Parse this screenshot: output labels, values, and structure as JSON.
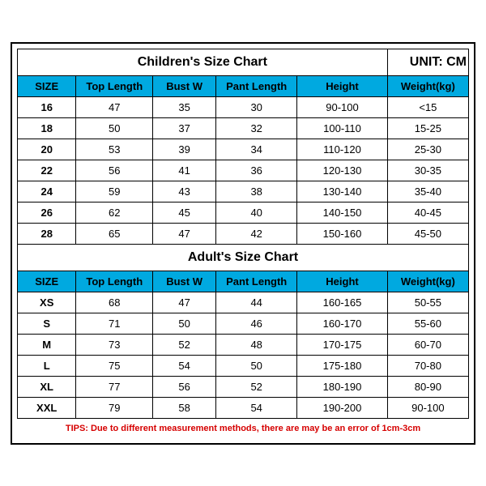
{
  "unit_label": "UNIT: CM",
  "tips": "TIPS: Due to different measurement methods, there are may be an error of 1cm-3cm",
  "columns": [
    "SIZE",
    "Top Length",
    "Bust W",
    "Pant Length",
    "Height",
    "Weight(kg)"
  ],
  "col_widths": [
    "13%",
    "17%",
    "14%",
    "18%",
    "20%",
    "18%"
  ],
  "header_bg": "#00a9e0",
  "border_color": "#000000",
  "tips_color": "#d60000",
  "children": {
    "title": "Children's Size Chart",
    "rows": [
      [
        "16",
        "47",
        "35",
        "30",
        "90-100",
        "<15"
      ],
      [
        "18",
        "50",
        "37",
        "32",
        "100-110",
        "15-25"
      ],
      [
        "20",
        "53",
        "39",
        "34",
        "110-120",
        "25-30"
      ],
      [
        "22",
        "56",
        "41",
        "36",
        "120-130",
        "30-35"
      ],
      [
        "24",
        "59",
        "43",
        "38",
        "130-140",
        "35-40"
      ],
      [
        "26",
        "62",
        "45",
        "40",
        "140-150",
        "40-45"
      ],
      [
        "28",
        "65",
        "47",
        "42",
        "150-160",
        "45-50"
      ]
    ]
  },
  "adult": {
    "title": "Adult's Size Chart",
    "rows": [
      [
        "XS",
        "68",
        "47",
        "44",
        "160-165",
        "50-55"
      ],
      [
        "S",
        "71",
        "50",
        "46",
        "160-170",
        "55-60"
      ],
      [
        "M",
        "73",
        "52",
        "48",
        "170-175",
        "60-70"
      ],
      [
        "L",
        "75",
        "54",
        "50",
        "175-180",
        "70-80"
      ],
      [
        "XL",
        "77",
        "56",
        "52",
        "180-190",
        "80-90"
      ],
      [
        "XXL",
        "79",
        "58",
        "54",
        "190-200",
        "90-100"
      ]
    ]
  }
}
